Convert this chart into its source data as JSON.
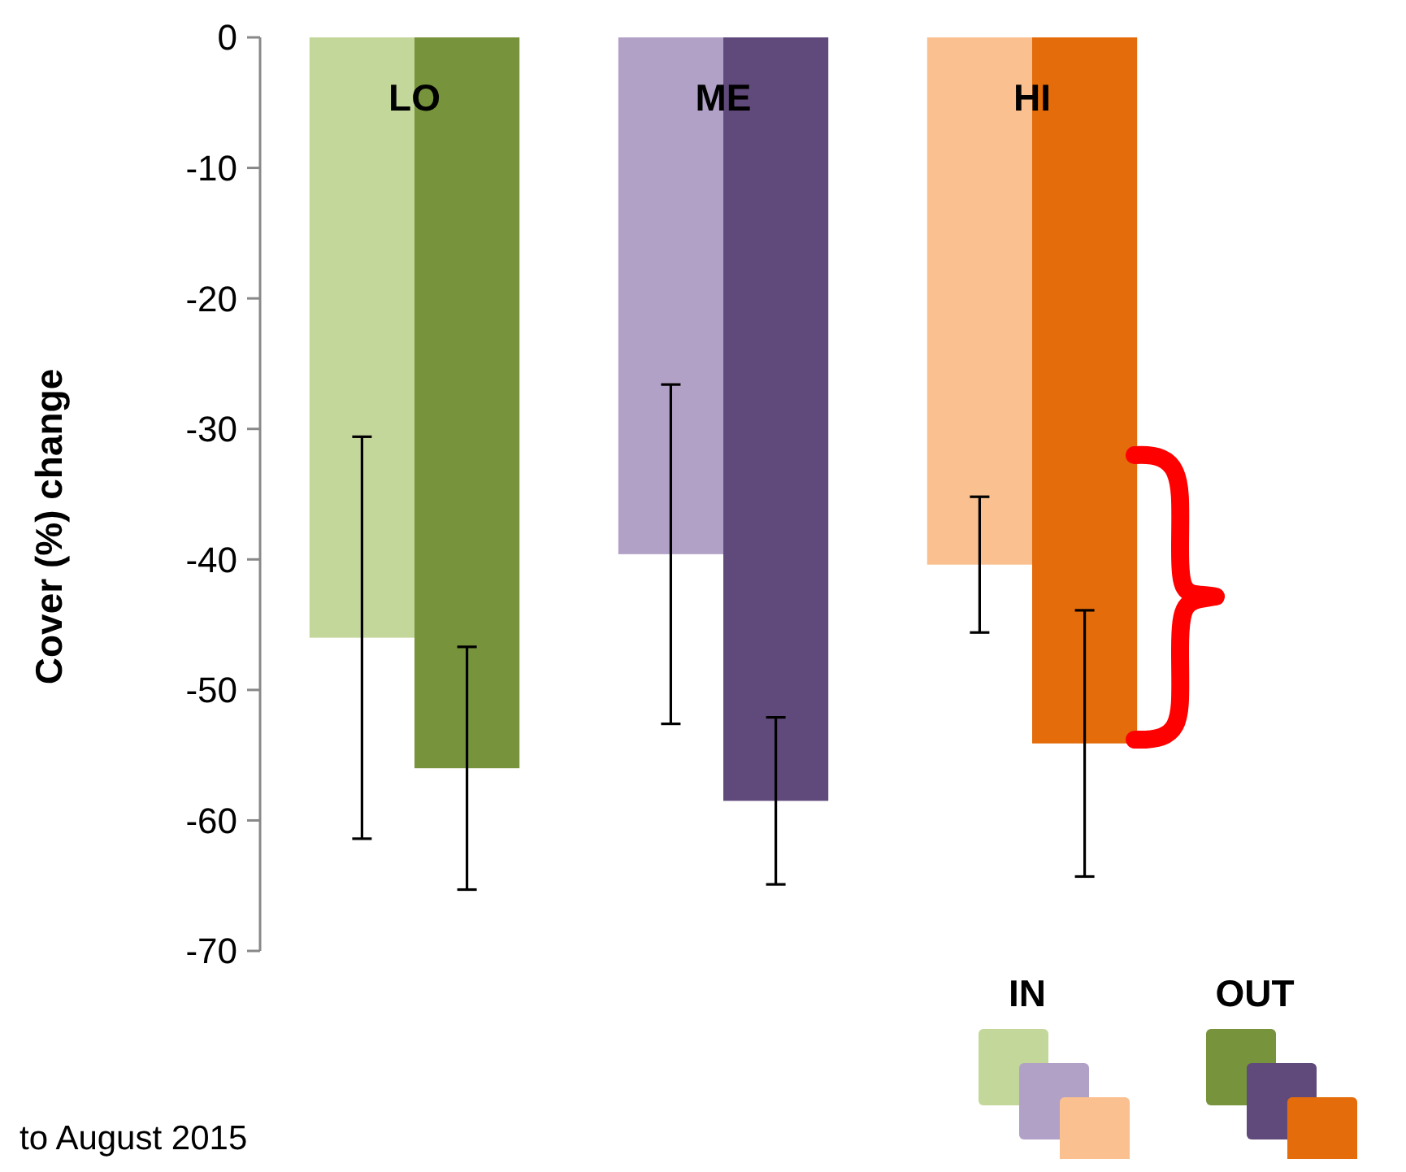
{
  "chart_data": {
    "type": "bar",
    "ylabel": "Cover (%) change",
    "categories": [
      "LO",
      "ME",
      "HI"
    ],
    "series": [
      {
        "name": "IN",
        "colors": [
          "#c4d79b",
          "#b2a1c7",
          "#fac090"
        ],
        "values": [
          -46,
          -39.6,
          -40.4
        ],
        "errors": [
          15.4,
          13,
          5.2
        ]
      },
      {
        "name": "OUT",
        "colors": [
          "#77933c",
          "#604a7b",
          "#e46c0a"
        ],
        "values": [
          -56,
          -58.5,
          -54.1
        ],
        "errors": [
          9.3,
          6.4,
          10.2
        ]
      }
    ],
    "ylim": [
      -70,
      0
    ],
    "yticks": [
      0,
      -10,
      -20,
      -30,
      -40,
      -50,
      -60,
      -70
    ],
    "grid": false,
    "legend": "bottom right",
    "annotations": [
      "to August 2015"
    ]
  }
}
